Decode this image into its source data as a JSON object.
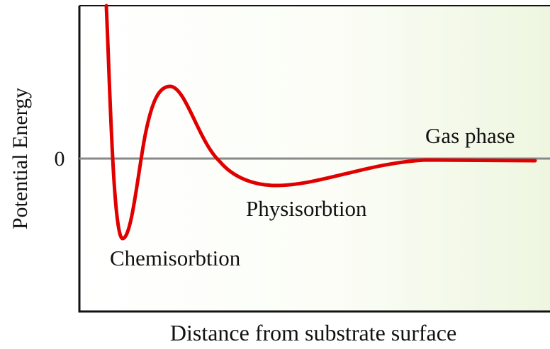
{
  "axis": {
    "y_label": "Potential Energy",
    "x_label": "Distance from substrate surface",
    "zero_label": "0"
  },
  "annotations": [
    "Chemisorbtion",
    "Physisorbtion",
    "Gas phase"
  ]
}
